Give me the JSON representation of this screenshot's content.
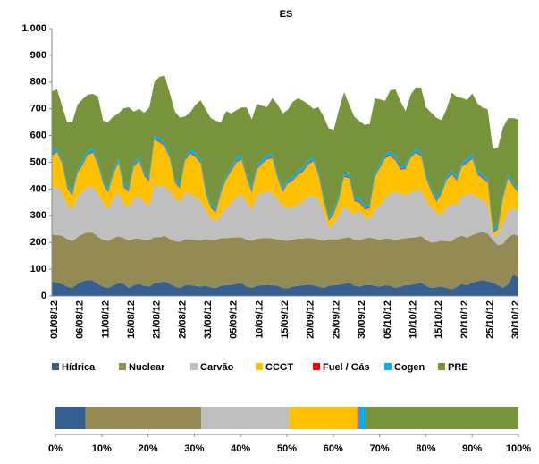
{
  "chart_data": [
    {
      "type": "stacked-area",
      "title": "ES",
      "categories": [
        "01/08/12",
        null,
        null,
        null,
        null,
        "06/08/12",
        null,
        null,
        null,
        null,
        "11/08/12",
        null,
        null,
        null,
        null,
        "16/08/12",
        null,
        null,
        null,
        null,
        "21/08/12",
        null,
        null,
        null,
        null,
        "26/08/12",
        null,
        null,
        null,
        null,
        "31/08/12",
        null,
        null,
        null,
        null,
        "05/09/12",
        null,
        null,
        null,
        null,
        "10/09/12",
        null,
        null,
        null,
        null,
        "15/09/12",
        null,
        null,
        null,
        null,
        "20/09/12",
        null,
        null,
        null,
        null,
        "25/09/12",
        null,
        null,
        null,
        null,
        "30/09/12",
        null,
        null,
        null,
        null,
        "05/10/12",
        null,
        null,
        null,
        null,
        "10/10/12",
        null,
        null,
        null,
        null,
        "15/10/12",
        null,
        null,
        null,
        null,
        "20/10/12",
        null,
        null,
        null,
        null,
        "25/10/12",
        null,
        null,
        null,
        null,
        "30/10/12",
        null
      ],
      "ylim": [
        0,
        1000
      ],
      "yticks": [
        0,
        100,
        200,
        300,
        400,
        500,
        600,
        700,
        800,
        900,
        {
          "value": 1000,
          "label": "1.000"
        }
      ],
      "grid": false,
      "series": [
        {
          "name": "Hídrica",
          "color": "#376092",
          "values": [
            55,
            50,
            45,
            35,
            30,
            45,
            55,
            60,
            58,
            45,
            35,
            30,
            40,
            48,
            45,
            30,
            40,
            45,
            38,
            35,
            48,
            50,
            55,
            45,
            35,
            30,
            40,
            40,
            38,
            35,
            38,
            32,
            30,
            38,
            40,
            42,
            45,
            48,
            35,
            30,
            38,
            40,
            42,
            40,
            38,
            30,
            28,
            35,
            38,
            40,
            42,
            40,
            35,
            30,
            38,
            40,
            42,
            45,
            50,
            38,
            35,
            40,
            42,
            38,
            35,
            40,
            38,
            30,
            35,
            40,
            42,
            45,
            50,
            38,
            30,
            32,
            35,
            30,
            25,
            35,
            45,
            40,
            50,
            55,
            60,
            55,
            50,
            40,
            30,
            45,
            80,
            70
          ]
        },
        {
          "name": "Nuclear",
          "color": "#948a54",
          "values": [
            175,
            178,
            180,
            178,
            175,
            175,
            176,
            178,
            178,
            176,
            175,
            176,
            176,
            175,
            172,
            176,
            174,
            170,
            172,
            174,
            172,
            170,
            170,
            168,
            170,
            172,
            172,
            172,
            172,
            172,
            175,
            178,
            180,
            178,
            176,
            176,
            175,
            172,
            175,
            176,
            176,
            176,
            175,
            175,
            174,
            178,
            178,
            176,
            176,
            175,
            175,
            175,
            176,
            176,
            174,
            172,
            170,
            172,
            170,
            172,
            174,
            175,
            176,
            176,
            175,
            175,
            176,
            178,
            178,
            176,
            176,
            175,
            174,
            172,
            170,
            170,
            172,
            175,
            180,
            185,
            180,
            178,
            178,
            180,
            180,
            178,
            160,
            150,
            165,
            175,
            150,
            155
          ]
        },
        {
          "name": "Carvão",
          "color": "#bfbfbf",
          "values": [
            175,
            180,
            160,
            130,
            120,
            150,
            160,
            170,
            170,
            160,
            140,
            120,
            150,
            165,
            130,
            125,
            150,
            160,
            140,
            130,
            195,
            190,
            185,
            180,
            160,
            150,
            175,
            170,
            160,
            150,
            110,
            80,
            70,
            90,
            110,
            130,
            150,
            160,
            140,
            120,
            160,
            170,
            175,
            170,
            150,
            130,
            125,
            120,
            130,
            140,
            155,
            160,
            150,
            110,
            40,
            60,
            90,
            120,
            100,
            95,
            110,
            80,
            70,
            110,
            130,
            150,
            170,
            180,
            170,
            160,
            170,
            175,
            170,
            150,
            130,
            110,
            95,
            130,
            140,
            120,
            150,
            160,
            155,
            130,
            120,
            110,
            15,
            40,
            80,
            100,
            100,
            90
          ]
        },
        {
          "name": "CCGT",
          "color": "#ffc000",
          "values": [
            120,
            130,
            110,
            60,
            50,
            90,
            100,
            120,
            130,
            110,
            70,
            60,
            90,
            110,
            60,
            60,
            120,
            130,
            100,
            90,
            170,
            165,
            150,
            120,
            60,
            50,
            120,
            150,
            150,
            140,
            60,
            40,
            30,
            80,
            110,
            120,
            130,
            130,
            90,
            60,
            100,
            110,
            120,
            130,
            80,
            50,
            90,
            100,
            110,
            110,
            120,
            130,
            90,
            40,
            30,
            35,
            60,
            110,
            120,
            50,
            30,
            30,
            40,
            120,
            140,
            150,
            140,
            120,
            90,
            100,
            130,
            140,
            130,
            80,
            60,
            40,
            80,
            100,
            110,
            90,
            110,
            120,
            130,
            90,
            80,
            80,
            10,
            20,
            90,
            120,
            80,
            70
          ]
        },
        {
          "name": "Fuel / Gás",
          "color": "#ff0000",
          "values": [
            3,
            3,
            3,
            3,
            3,
            3,
            3,
            3,
            3,
            3,
            3,
            3,
            3,
            3,
            3,
            3,
            3,
            3,
            3,
            3,
            3,
            3,
            3,
            3,
            3,
            3,
            3,
            3,
            3,
            3,
            3,
            3,
            3,
            3,
            3,
            3,
            3,
            3,
            3,
            3,
            3,
            3,
            3,
            3,
            3,
            3,
            3,
            3,
            3,
            3,
            3,
            3,
            3,
            3,
            3,
            3,
            3,
            3,
            3,
            3,
            3,
            3,
            3,
            3,
            3,
            3,
            3,
            3,
            3,
            3,
            3,
            3,
            3,
            3,
            3,
            3,
            3,
            3,
            3,
            3,
            3,
            3,
            3,
            3,
            3,
            3,
            3,
            3,
            3,
            3,
            3,
            3
          ]
        },
        {
          "name": "Cogen",
          "color": "#00b0f0",
          "values": [
            12,
            12,
            12,
            12,
            12,
            12,
            12,
            12,
            12,
            12,
            12,
            12,
            12,
            12,
            12,
            12,
            12,
            12,
            12,
            12,
            12,
            12,
            12,
            12,
            12,
            12,
            12,
            12,
            12,
            12,
            12,
            12,
            12,
            12,
            12,
            12,
            12,
            12,
            12,
            12,
            12,
            12,
            12,
            12,
            12,
            12,
            12,
            12,
            12,
            12,
            12,
            12,
            12,
            12,
            12,
            12,
            12,
            12,
            12,
            12,
            12,
            12,
            12,
            12,
            12,
            12,
            12,
            12,
            12,
            12,
            12,
            12,
            12,
            12,
            12,
            12,
            12,
            12,
            12,
            12,
            12,
            12,
            12,
            12,
            12,
            12,
            12,
            12,
            12,
            12,
            12,
            12
          ]
        },
        {
          "name": "PRE",
          "color": "#77933c",
          "values": [
            225,
            220,
            200,
            230,
            260,
            240,
            230,
            210,
            205,
            240,
            220,
            250,
            200,
            170,
            280,
            300,
            190,
            180,
            220,
            260,
            200,
            230,
            250,
            230,
            250,
            250,
            150,
            140,
            180,
            220,
            300,
            320,
            330,
            250,
            240,
            200,
            180,
            180,
            250,
            260,
            230,
            200,
            180,
            210,
            260,
            280,
            260,
            280,
            270,
            250,
            210,
            180,
            240,
            300,
            330,
            300,
            320,
            300,
            260,
            300,
            290,
            300,
            300,
            280,
            240,
            200,
            230,
            250,
            240,
            200,
            220,
            230,
            240,
            250,
            280,
            300,
            260,
            250,
            290,
            300,
            240,
            220,
            230,
            250,
            250,
            260,
            300,
            290,
            250,
            210,
            240,
            260
          ]
        }
      ]
    },
    {
      "type": "bar-100",
      "values": [
        6.5,
        25,
        19,
        14.7,
        0.3,
        1.5,
        33
      ],
      "xlim": [
        0,
        100
      ],
      "xticks": [
        {
          "value": 0,
          "label": "0%"
        },
        {
          "value": 10,
          "label": "10%"
        },
        {
          "value": 20,
          "label": "20%"
        },
        {
          "value": 30,
          "label": "30%"
        },
        {
          "value": 40,
          "label": "40%"
        },
        {
          "value": 50,
          "label": "50%"
        },
        {
          "value": 60,
          "label": "60%"
        },
        {
          "value": 70,
          "label": "70%"
        },
        {
          "value": 80,
          "label": "80%"
        },
        {
          "value": 90,
          "label": "90%"
        },
        {
          "value": 100,
          "label": "100%"
        }
      ]
    }
  ]
}
